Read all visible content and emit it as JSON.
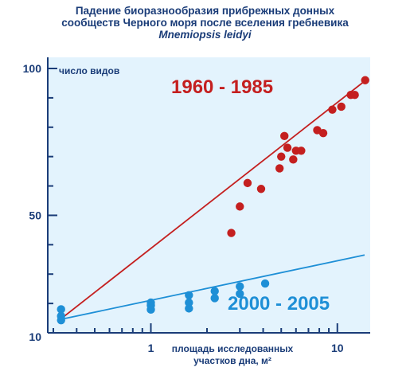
{
  "title": {
    "line1": "Падение биоразнообразия прибрежных донных",
    "line2": "сообществ Черного моря после вселения гребневика",
    "line3": "Mnemiopsis leidyi"
  },
  "colors": {
    "background": "#e3f3fd",
    "frame": "#1a3c78",
    "red": "#c41f1f",
    "blue": "#1e8fd6"
  },
  "chart_data": {
    "type": "scatter",
    "title": "Падение биоразнообразия прибрежных донных сообществ Черного моря после вселения гребневика Mnemiopsis leidyi",
    "ylabel": "число видов",
    "xlabel": [
      "площадь исследованных",
      "участков дна, м²"
    ],
    "x_ticks": [
      "1",
      "10"
    ],
    "y_ticks": [
      "100",
      "50",
      "10"
    ],
    "xlim": [
      0.28,
      15
    ],
    "ylim": [
      10,
      100
    ],
    "grid": false,
    "series": [
      {
        "name": "1960 - 1985",
        "color": "#c41f1f",
        "points": [
          [
            2.7,
            44
          ],
          [
            3.0,
            53
          ],
          [
            3.3,
            61
          ],
          [
            3.9,
            59
          ],
          [
            4.9,
            66
          ],
          [
            5.0,
            70
          ],
          [
            5.2,
            77
          ],
          [
            5.4,
            73
          ],
          [
            5.8,
            69
          ],
          [
            6.0,
            72
          ],
          [
            6.4,
            72
          ],
          [
            7.8,
            79
          ],
          [
            8.4,
            78
          ],
          [
            9.4,
            86
          ],
          [
            10.5,
            87
          ],
          [
            11.8,
            91
          ],
          [
            12.4,
            91
          ],
          [
            14.1,
            96
          ]
        ],
        "trend": [
          [
            0.33,
            14.8
          ],
          [
            14.2,
            96
          ]
        ]
      },
      {
        "name": "2000 - 2005",
        "color": "#1e8fd6",
        "points": [
          [
            0.33,
            18
          ],
          [
            0.33,
            14.3
          ],
          [
            0.33,
            15.7
          ],
          [
            1.0,
            17.9
          ],
          [
            1.0,
            19.3
          ],
          [
            1.0,
            20.3
          ],
          [
            1.6,
            18.3
          ],
          [
            1.6,
            20.3
          ],
          [
            1.6,
            22.8
          ],
          [
            2.2,
            21.8
          ],
          [
            2.2,
            24.2
          ],
          [
            3.0,
            23.3
          ],
          [
            3.0,
            25.8
          ],
          [
            4.1,
            26.8
          ]
        ],
        "trend": [
          [
            0.33,
            14.6
          ],
          [
            14.0,
            36.5
          ]
        ]
      }
    ]
  }
}
